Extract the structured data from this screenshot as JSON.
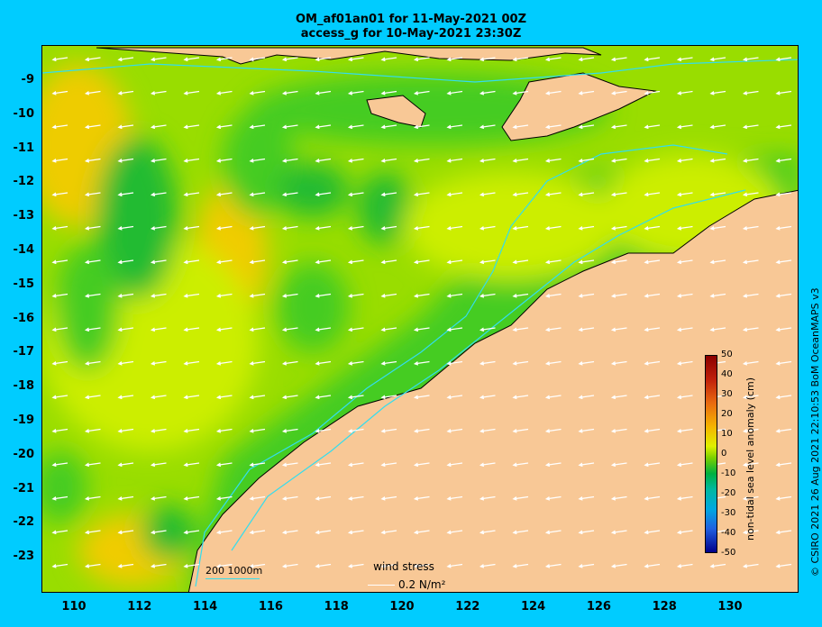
{
  "title_line1": "OM_af01an01 for 11-May-2021 00Z",
  "title_line2": "access_g for 10-May-2021 23:30Z",
  "y_ticks": [
    "-9",
    "-10",
    "-11",
    "-12",
    "-13",
    "-14",
    "-15",
    "-16",
    "-17",
    "-18",
    "-19",
    "-20",
    "-21",
    "-22",
    "-23"
  ],
  "x_ticks": [
    "110",
    "112",
    "114",
    "116",
    "118",
    "120",
    "122",
    "124",
    "126",
    "128",
    "130"
  ],
  "colorbar": {
    "labels": [
      "50",
      "40",
      "30",
      "20",
      "10",
      "0",
      "-10",
      "-20",
      "-30",
      "-40",
      "-50"
    ],
    "title": "non-tidal sea level anomaly (cm)"
  },
  "wind": {
    "label": "wind stress",
    "value": "0.2 N/m²"
  },
  "depth_contours": "200 1000m",
  "credit": "© CSIRO 2021  26 Aug 2021 22:10:53 BoM OceanMAPS v3",
  "colors": {
    "background": "#00ccff",
    "land": "#f8c896",
    "sea_green": "#44cc22",
    "sea_yellow": "#ccee00",
    "contour": "#33ddee"
  }
}
